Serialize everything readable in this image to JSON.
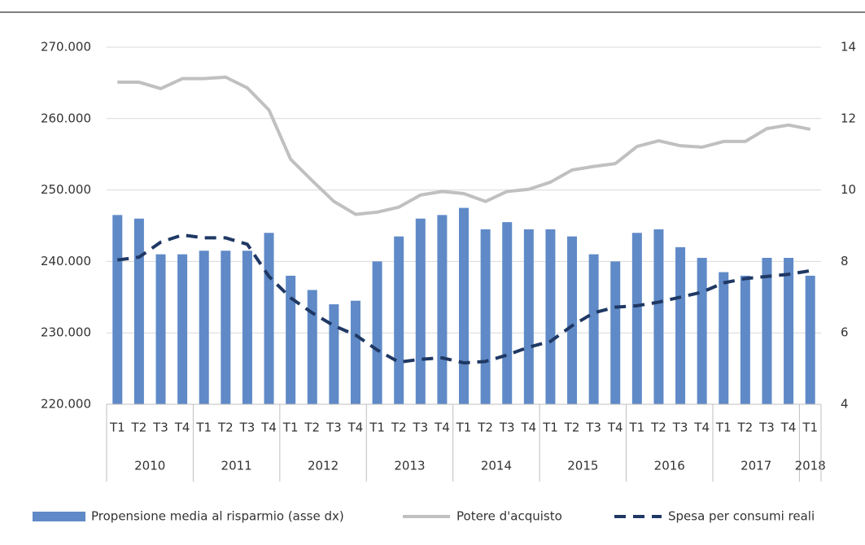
{
  "chart_data": {
    "type": "bar-line",
    "categories": [
      "T1",
      "T2",
      "T3",
      "T4",
      "T1",
      "T2",
      "T3",
      "T4",
      "T1",
      "T2",
      "T3",
      "T4",
      "T1",
      "T2",
      "T3",
      "T4",
      "T1",
      "T2",
      "T3",
      "T4",
      "T1",
      "T2",
      "T3",
      "T4",
      "T1",
      "T2",
      "T3",
      "T4",
      "T1",
      "T2",
      "T3",
      "T4",
      "T1"
    ],
    "year_groups": [
      {
        "label": "2010",
        "count": 4
      },
      {
        "label": "2011",
        "count": 4
      },
      {
        "label": "2012",
        "count": 4
      },
      {
        "label": "2013",
        "count": 4
      },
      {
        "label": "2014",
        "count": 4
      },
      {
        "label": "2015",
        "count": 4
      },
      {
        "label": "2016",
        "count": 4
      },
      {
        "label": "2017",
        "count": 4
      },
      {
        "label": "2018",
        "count": 1
      }
    ],
    "series": [
      {
        "name": "Propensione media al risparmio (asse dx)",
        "type": "bar",
        "axis": "y2",
        "color": "#5f8ac7",
        "values": [
          9.3,
          9.2,
          8.2,
          8.2,
          8.3,
          8.3,
          8.3,
          8.8,
          7.6,
          7.2,
          6.8,
          6.9,
          8.0,
          8.7,
          9.2,
          9.3,
          9.5,
          8.9,
          9.1,
          8.9,
          8.9,
          8.7,
          8.2,
          8.0,
          8.8,
          8.9,
          8.4,
          8.1,
          7.7,
          7.6,
          8.1,
          8.1,
          7.6
        ]
      },
      {
        "name": "Potere d'acquisto",
        "type": "line",
        "color": "#c0c0c0",
        "dash": false,
        "values": [
          265100,
          265100,
          264200,
          265600,
          265600,
          265800,
          264300,
          261200,
          254300,
          251300,
          248400,
          246600,
          246900,
          247600,
          249300,
          249800,
          249500,
          248400,
          249800,
          250100,
          251100,
          252800,
          253300,
          253700,
          256100,
          256900,
          256200,
          256000,
          256800,
          256800,
          258600,
          259100,
          258500
        ]
      },
      {
        "name": "Spesa per consumi reali",
        "type": "line",
        "color": "#1f3864",
        "dash": true,
        "values": [
          240200,
          240600,
          242700,
          243700,
          243300,
          243300,
          242400,
          237900,
          234900,
          232800,
          231000,
          229700,
          227600,
          225900,
          226300,
          226500,
          225800,
          226000,
          226900,
          228000,
          228800,
          231000,
          232800,
          233600,
          233800,
          234300,
          235000,
          235700,
          237000,
          237600,
          237900,
          238200,
          238700
        ]
      }
    ],
    "ylim": [
      220000,
      270000
    ],
    "yticks": [
      {
        "value": 220000,
        "label": "220.000"
      },
      {
        "value": 230000,
        "label": "230.000"
      },
      {
        "value": 240000,
        "label": "240.000"
      },
      {
        "value": 250000,
        "label": "250.000"
      },
      {
        "value": 260000,
        "label": "260.000"
      },
      {
        "value": 270000,
        "label": "270.000"
      }
    ],
    "y2lim": [
      4,
      14
    ],
    "y2ticks": [
      4,
      6,
      8,
      10,
      12,
      14
    ],
    "grid": true
  }
}
